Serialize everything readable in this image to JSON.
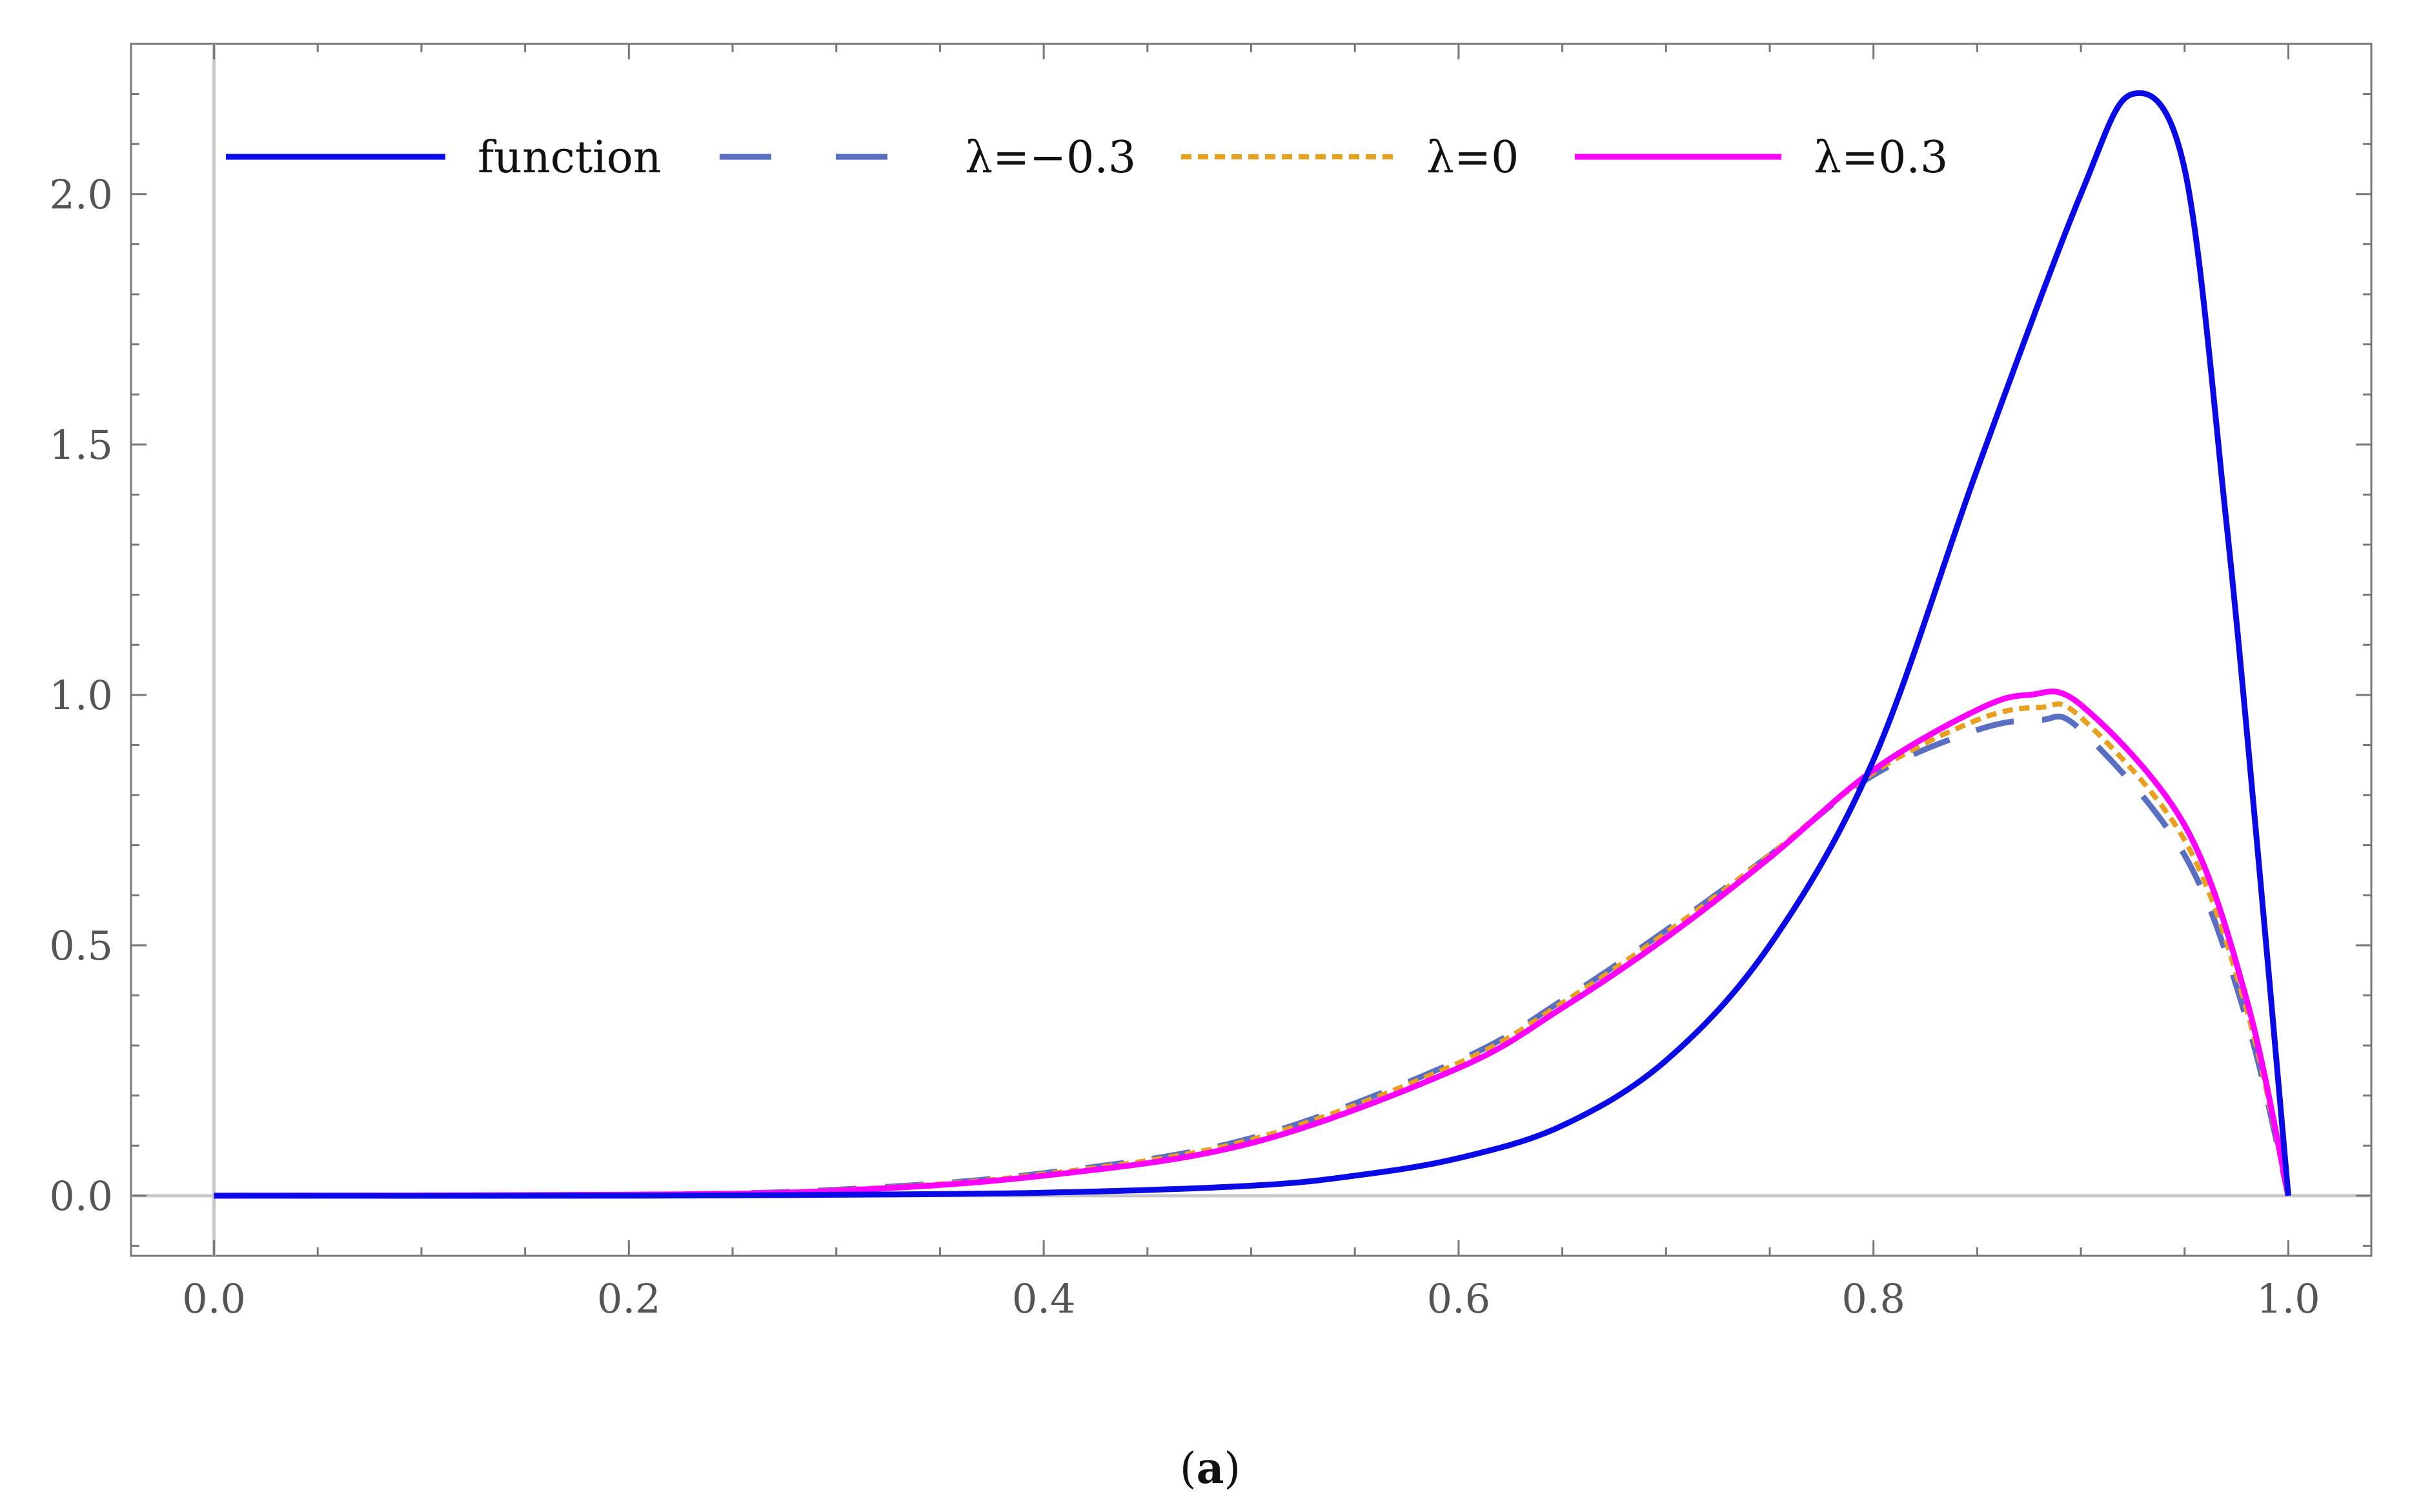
{
  "chart_data": {
    "type": "line",
    "title": "",
    "xlabel": "",
    "ylabel": "",
    "xlim": [
      -0.04,
      1.04
    ],
    "ylim": [
      -0.12,
      2.3
    ],
    "x_ticks": [
      0.0,
      0.2,
      0.4,
      0.6,
      0.8,
      1.0
    ],
    "x_tick_labels": [
      "0.0",
      "0.2",
      "0.4",
      "0.6",
      "0.8",
      "1.0"
    ],
    "y_ticks": [
      0.0,
      0.5,
      1.0,
      1.5,
      2.0
    ],
    "y_tick_labels": [
      "0.0",
      "0.5",
      "1.0",
      "1.5",
      "2.0"
    ],
    "grid": false,
    "legend_position": "top-left",
    "caption": {
      "open": "(",
      "letter": "a",
      "close": ")"
    },
    "series": [
      {
        "name": "function",
        "color": "#0a0ae6",
        "style": "solid",
        "x": [
          0.0,
          0.2,
          0.3,
          0.4,
          0.5,
          0.55,
          0.6,
          0.65,
          0.7,
          0.75,
          0.8,
          0.85,
          0.9,
          0.925,
          0.95,
          0.97,
          0.985,
          1.0
        ],
        "y": [
          0.0,
          0.0,
          0.002,
          0.006,
          0.02,
          0.04,
          0.075,
          0.14,
          0.27,
          0.5,
          0.87,
          1.45,
          2.0,
          2.2,
          2.05,
          1.35,
          0.7,
          0.0
        ]
      },
      {
        "name": "λ=−0.3",
        "color": "#5a6fc2",
        "style": "dashed",
        "x": [
          0.0,
          0.2,
          0.3,
          0.4,
          0.5,
          0.6,
          0.65,
          0.7,
          0.75,
          0.8,
          0.85,
          0.88,
          0.9,
          0.95,
          0.98,
          1.0
        ],
        "y": [
          0.0,
          0.002,
          0.012,
          0.045,
          0.115,
          0.27,
          0.39,
          0.53,
          0.68,
          0.84,
          0.93,
          0.95,
          0.93,
          0.68,
          0.35,
          0.0
        ]
      },
      {
        "name": "λ=0",
        "color": "#e8a020",
        "style": "dotted",
        "x": [
          0.0,
          0.2,
          0.3,
          0.4,
          0.5,
          0.6,
          0.65,
          0.7,
          0.75,
          0.8,
          0.85,
          0.88,
          0.9,
          0.95,
          0.98,
          1.0
        ],
        "y": [
          0.0,
          0.002,
          0.011,
          0.043,
          0.112,
          0.265,
          0.385,
          0.525,
          0.68,
          0.845,
          0.95,
          0.975,
          0.955,
          0.71,
          0.37,
          0.0
        ]
      },
      {
        "name": "λ=0.3",
        "color": "#ff00ff",
        "style": "solid",
        "x": [
          0.0,
          0.2,
          0.3,
          0.4,
          0.5,
          0.6,
          0.65,
          0.7,
          0.75,
          0.8,
          0.85,
          0.875,
          0.9,
          0.95,
          0.98,
          1.0
        ],
        "y": [
          0.0,
          0.002,
          0.01,
          0.04,
          0.105,
          0.255,
          0.375,
          0.515,
          0.675,
          0.85,
          0.97,
          1.0,
          0.98,
          0.74,
          0.39,
          0.0
        ]
      }
    ]
  }
}
